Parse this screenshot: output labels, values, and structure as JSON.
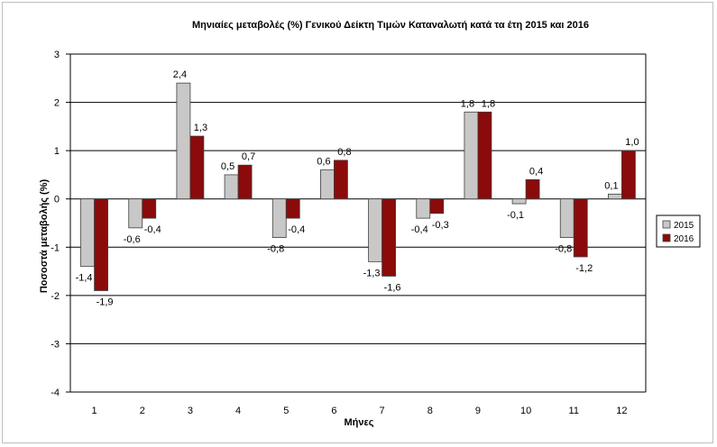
{
  "chart_data": {
    "type": "bar",
    "title": "Μηνιαίες μεταβολές (%) Γενικού Δείκτη Τιμών Καταναλωτή κατά τα έτη 2015  και 2016",
    "xlabel": "Μήνες",
    "ylabel": "Ποσοστά μεταβολής (%)",
    "categories": [
      "1",
      "2",
      "3",
      "4",
      "5",
      "6",
      "7",
      "8",
      "9",
      "10",
      "11",
      "12"
    ],
    "ylim": [
      -4,
      3
    ],
    "yticks": [
      3,
      2,
      1,
      0,
      -1,
      -2,
      -3,
      -4
    ],
    "grid": true,
    "legend_position": "right",
    "series": [
      {
        "name": "2015",
        "color": "#c8c8c8",
        "values": [
          -1.4,
          -0.6,
          2.4,
          0.5,
          -0.8,
          0.6,
          -1.3,
          -0.4,
          1.8,
          -0.1,
          -0.8,
          0.1
        ],
        "labels": [
          "-1,4",
          "-0,6",
          "2,4",
          "0,5",
          "-0,8",
          "0,6",
          "-1,3",
          "-0,4",
          "1,8",
          "-0,1",
          "-0,8",
          "0,1"
        ]
      },
      {
        "name": "2016",
        "color": "#8b0a0a",
        "values": [
          -1.9,
          -0.4,
          1.3,
          0.7,
          -0.4,
          0.8,
          -1.6,
          -0.3,
          1.8,
          0.4,
          -1.2,
          1.0
        ],
        "labels": [
          "-1,9",
          "-0,4",
          "1,3",
          "0,7",
          "-0,4",
          "0,8",
          "-1,6",
          "-0,3",
          "1,8",
          "0,4",
          "-1,2",
          "1,0"
        ]
      }
    ]
  }
}
